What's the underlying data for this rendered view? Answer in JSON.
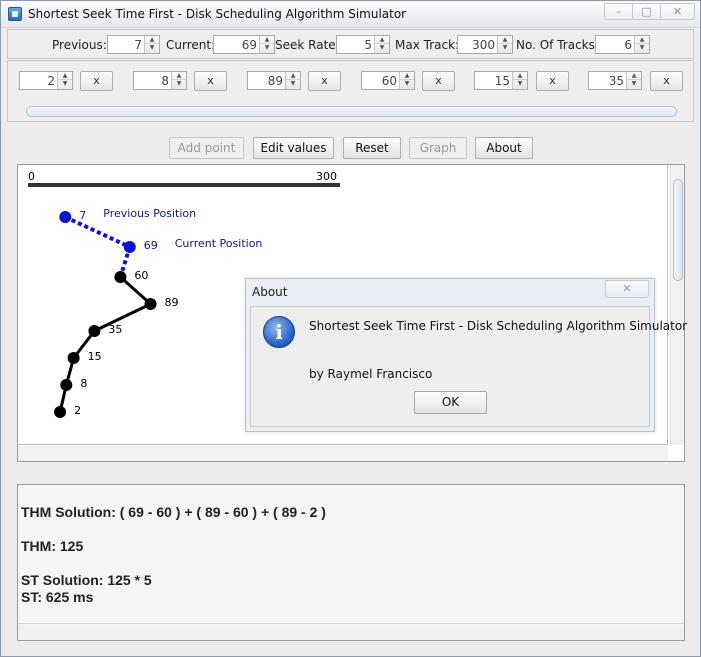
{
  "window": {
    "title": "Shortest Seek Time First - Disk Scheduling Algorithm Simulator",
    "buttons": {
      "minimize": "–",
      "maximize": "□",
      "close": "✕"
    }
  },
  "settings": {
    "previous_label": "Previous:",
    "previous_value": "7",
    "current_label": "Current:",
    "current_value": "69",
    "seek_rate_label": "Seek Rate:",
    "seek_rate_value": "5",
    "max_track_label": "Max Track:",
    "max_track_value": "300",
    "num_tracks_label": "No. Of Tracks:",
    "num_tracks_value": "6"
  },
  "track_inputs": [
    {
      "value": "2",
      "remove_label": "x"
    },
    {
      "value": "8",
      "remove_label": "x"
    },
    {
      "value": "89",
      "remove_label": "x"
    },
    {
      "value": "60",
      "remove_label": "x"
    },
    {
      "value": "15",
      "remove_label": "x"
    },
    {
      "value": "35",
      "remove_label": "x"
    }
  ],
  "toolbar": {
    "add_point": "Add point",
    "edit_values": "Edit values",
    "reset": "Reset",
    "graph": "Graph",
    "about": "About"
  },
  "graph": {
    "scale_min": "0",
    "scale_max": "300",
    "previous_label": "Previous Position",
    "current_label": "Current Position",
    "points": [
      {
        "track": 7,
        "label": "7",
        "type": "previous"
      },
      {
        "track": 69,
        "label": "69",
        "type": "current"
      },
      {
        "track": 60,
        "label": "60",
        "type": "visit"
      },
      {
        "track": 89,
        "label": "89",
        "type": "visit"
      },
      {
        "track": 35,
        "label": "35",
        "type": "visit"
      },
      {
        "track": 15,
        "label": "15",
        "type": "visit"
      },
      {
        "track": 8,
        "label": "8",
        "type": "visit"
      },
      {
        "track": 2,
        "label": "2",
        "type": "visit"
      }
    ],
    "colors": {
      "head": "#0b12d6",
      "path": "#000000",
      "label_blue": "#0b1a8a"
    }
  },
  "about_dialog": {
    "title": "About",
    "close": "✕",
    "message": "Shortest Seek Time First - Disk Scheduling Algorithm Simulator",
    "author": "by Raymel Francisco",
    "ok": "OK"
  },
  "results": {
    "thm_solution": "THM Solution: ( 69 - 60 ) + ( 89 - 60 ) + ( 89 - 2 )",
    "thm": "THM: 125",
    "st_solution": "ST Solution: 125 * 5",
    "st": "ST: 625 ms"
  }
}
